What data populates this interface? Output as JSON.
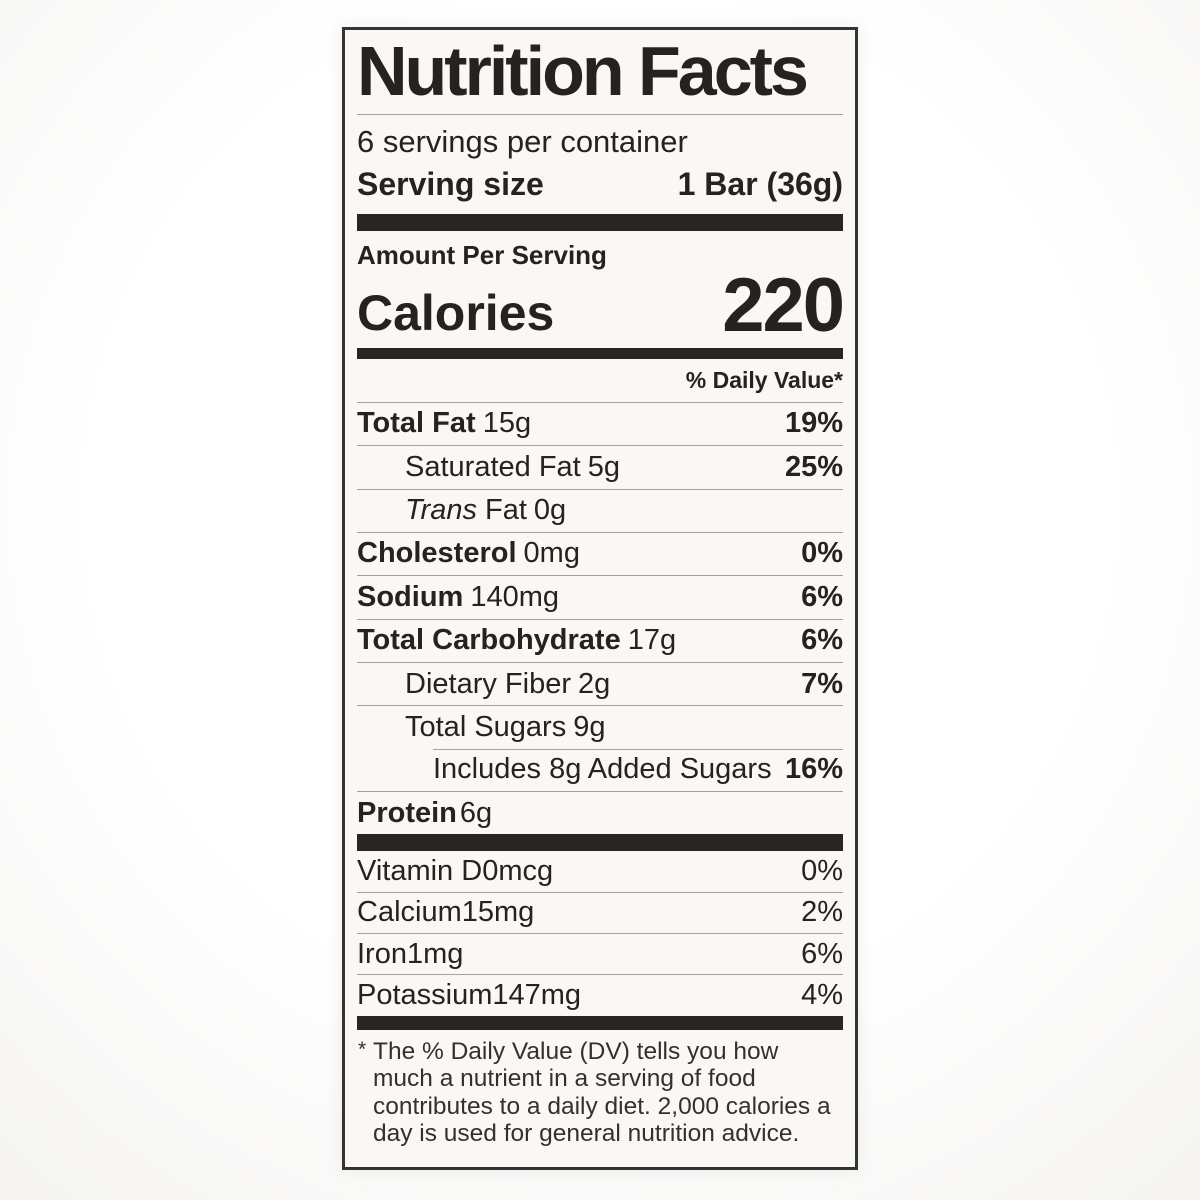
{
  "nutrition_label": {
    "title": "Nutrition Facts",
    "servings_per_container": "6 servings per container",
    "serving_size": {
      "label": "Serving size",
      "value": "1 Bar (36g)"
    },
    "amount_per_serving": "Amount Per Serving",
    "calories": {
      "label": "Calories",
      "value": "220"
    },
    "daily_value_header": "% Daily Value*",
    "nutrients": [
      {
        "name": "Total Fat",
        "amount": "15g",
        "daily_value": "19%"
      },
      {
        "name": "Saturated Fat",
        "amount": "5g",
        "daily_value": "25%"
      },
      {
        "name_italic": "Trans",
        "name": "Fat",
        "amount": "0g",
        "daily_value": ""
      },
      {
        "name": "Cholesterol",
        "amount": "0mg",
        "daily_value": "0%"
      },
      {
        "name": "Sodium",
        "amount": "140mg",
        "daily_value": "6%"
      },
      {
        "name": "Total Carbohydrate",
        "amount": "17g",
        "daily_value": "6%"
      },
      {
        "name": "Dietary Fiber",
        "amount": "2g",
        "daily_value": "7%"
      },
      {
        "name": "Total Sugars",
        "amount": "9g",
        "daily_value": ""
      },
      {
        "name": "Includes 8g Added Sugars",
        "amount": "",
        "daily_value": "16%"
      },
      {
        "name": "Protein",
        "amount": "6g",
        "daily_value": ""
      }
    ],
    "micronutrients": [
      {
        "name": "Vitamin D",
        "amount": "0mcg",
        "daily_value": "0%"
      },
      {
        "name": "Calcium",
        "amount": "15mg",
        "daily_value": "2%"
      },
      {
        "name": "Iron",
        "amount": "1mg",
        "daily_value": "6%"
      },
      {
        "name": "Potassium",
        "amount": "147mg",
        "daily_value": "4%"
      }
    ],
    "footnote": {
      "marker": "*",
      "text": "The % Daily Value (DV) tells you how much a nutrient in a serving of food contributes to a daily diet. 2,000 calories a day is used for general nutrition advice."
    },
    "colors": {
      "text": "#262222",
      "bars": "#2a2525",
      "hairline": "#a5a19b",
      "label_background": "#f9f8f5"
    }
  }
}
